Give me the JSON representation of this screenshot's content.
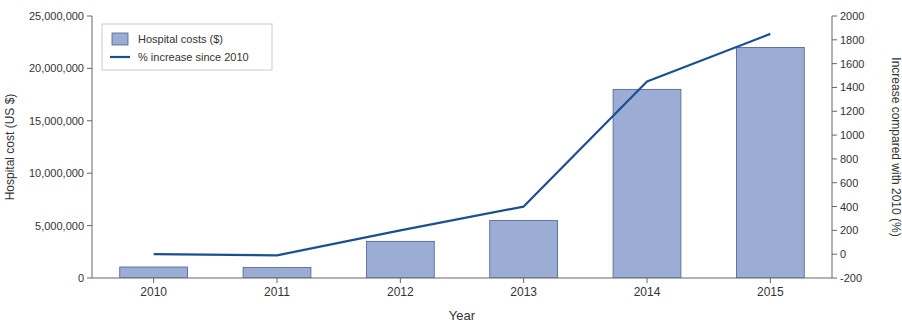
{
  "chart_data": {
    "type": "bar",
    "categories": [
      "2010",
      "2011",
      "2012",
      "2013",
      "2014",
      "2015"
    ],
    "series": [
      {
        "name": "Hospital costs ($)",
        "type": "bar",
        "color": "#9badd4",
        "values": [
          1050000,
          1000000,
          3500000,
          5500000,
          18000000,
          22000000
        ]
      },
      {
        "name": "% increase since 2010",
        "type": "line",
        "axis": "y2",
        "color": "#1a5090",
        "values": [
          0,
          -10,
          200,
          400,
          1450,
          1850
        ]
      }
    ],
    "xlabel": "Year",
    "ylabel": "Hospital cost (US $)",
    "y2label": "Increase compared with 2010 (%)",
    "ylim": [
      0,
      25000000
    ],
    "yticks": [
      0,
      {
        "value": 5000000,
        "label": "5,000,000"
      },
      {
        "value": 10000000,
        "label": "10,000,000"
      },
      {
        "value": 15000000,
        "label": "15,000,000"
      },
      {
        "value": 20000000,
        "label": "20,000,000"
      },
      {
        "value": 25000000,
        "label": "25,000,000"
      }
    ],
    "y2lim": [
      -200,
      2000
    ],
    "y2ticks": [
      -200,
      0,
      200,
      400,
      600,
      800,
      1000,
      1200,
      1400,
      1600,
      1800,
      2000
    ],
    "grid": false,
    "legend": "upper-left"
  }
}
